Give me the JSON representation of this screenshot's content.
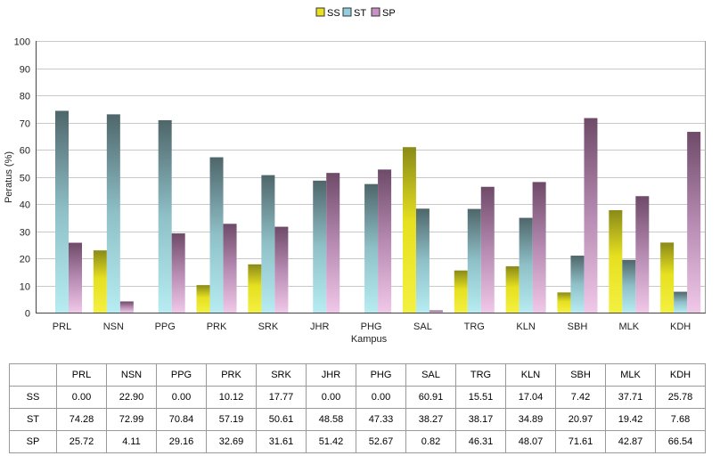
{
  "chart_data": {
    "type": "bar",
    "categories": [
      "PRL",
      "NSN",
      "PPG",
      "PRK",
      "SRK",
      "JHR",
      "PHG",
      "SAL",
      "TRG",
      "KLN",
      "SBH",
      "MLK",
      "KDH"
    ],
    "series": [
      {
        "name": "SS",
        "color": "#e8e020",
        "values": [
          0.0,
          22.9,
          0.0,
          10.12,
          17.77,
          0.0,
          0.0,
          60.91,
          15.51,
          17.04,
          7.42,
          37.71,
          25.78
        ]
      },
      {
        "name": "ST",
        "color": "#8fd0dc",
        "values": [
          74.28,
          72.99,
          70.84,
          57.19,
          50.61,
          48.58,
          47.33,
          38.27,
          38.17,
          34.89,
          20.97,
          19.42,
          7.68
        ]
      },
      {
        "name": "SP",
        "color": "#c890c4",
        "values": [
          25.72,
          4.11,
          29.16,
          32.69,
          31.61,
          51.42,
          52.67,
          0.82,
          46.31,
          48.07,
          71.61,
          42.87,
          66.54
        ]
      }
    ],
    "xlabel": "Kampus",
    "ylabel": "Peratus (%)",
    "ylim": [
      0,
      100
    ],
    "yticks": [
      0,
      10,
      20,
      30,
      40,
      50,
      60,
      70,
      80,
      90,
      100
    ],
    "grid": true,
    "legend": "top-center"
  },
  "table": {
    "header": [
      "PRL",
      "NSN",
      "PPG",
      "PRK",
      "SRK",
      "JHR",
      "PHG",
      "SAL",
      "TRG",
      "KLN",
      "SBH",
      "MLK",
      "KDH"
    ],
    "rows": [
      {
        "label": "SS",
        "cells": [
          "0.00",
          "22.90",
          "0.00",
          "10.12",
          "17.77",
          "0.00",
          "0.00",
          "60.91",
          "15.51",
          "17.04",
          "7.42",
          "37.71",
          "25.78"
        ]
      },
      {
        "label": "ST",
        "cells": [
          "74.28",
          "72.99",
          "70.84",
          "57.19",
          "50.61",
          "48.58",
          "47.33",
          "38.27",
          "38.17",
          "34.89",
          "20.97",
          "19.42",
          "7.68"
        ]
      },
      {
        "label": "SP",
        "cells": [
          "25.72",
          "4.11",
          "29.16",
          "32.69",
          "31.61",
          "51.42",
          "52.67",
          "0.82",
          "46.31",
          "48.07",
          "71.61",
          "42.87",
          "66.54"
        ]
      }
    ]
  }
}
